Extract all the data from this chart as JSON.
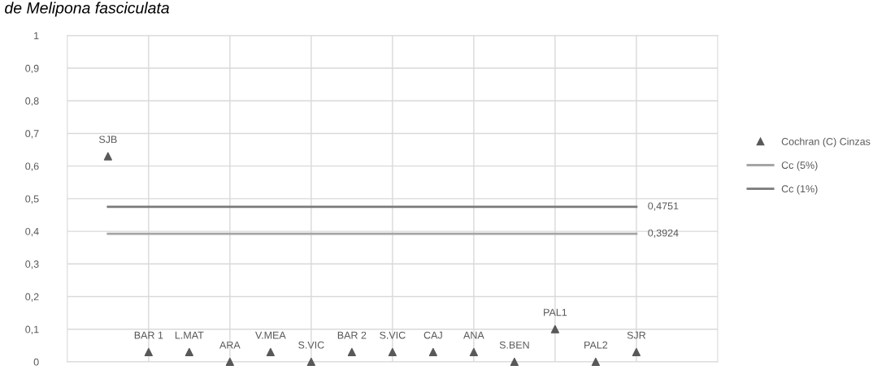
{
  "chart_data": {
    "type": "scatter",
    "title": "de Melipona fasciculata",
    "categories": [
      "SJB",
      "BAR 1",
      "L.MAT",
      "ARA",
      "V.MEA",
      "S.VIC",
      "BAR 2",
      "S.VIC",
      "CAJ",
      "ANA",
      "S.BEN",
      "PAL1",
      "PAL2",
      "SJR"
    ],
    "series": [
      {
        "name": "Cochran (C) Cinzas",
        "color": "#595959",
        "marker": "triangle",
        "values": [
          0.63,
          0.03,
          0.03,
          0,
          0.03,
          0,
          0.03,
          0.03,
          0.03,
          0.03,
          0,
          0.1,
          0,
          0.03
        ]
      },
      {
        "name": "Cc (5%)",
        "type": "line",
        "color": "#a5a5a5",
        "values": [
          0.3924,
          0.3924,
          0.3924,
          0.3924,
          0.3924,
          0.3924,
          0.3924,
          0.3924,
          0.3924,
          0.3924,
          0.3924,
          0.3924,
          0.3924,
          0.3924
        ],
        "value_labels": [
          null,
          null,
          null,
          null,
          null,
          null,
          null,
          null,
          null,
          null,
          null,
          null,
          null,
          "0,3924"
        ]
      },
      {
        "name": "Cc (1%)",
        "type": "line",
        "color": "#7a7a7a",
        "values": [
          0.4751,
          0.4751,
          0.4751,
          0.4751,
          0.4751,
          0.4751,
          0.4751,
          0.4751,
          0.4751,
          0.4751,
          0.4751,
          0.4751,
          0.4751,
          0.4751
        ],
        "value_labels": [
          null,
          null,
          null,
          null,
          null,
          null,
          null,
          null,
          null,
          null,
          null,
          null,
          null,
          "0,4751"
        ]
      }
    ],
    "ylim": [
      0,
      1
    ],
    "yticks": [
      0,
      {
        "value": 0.1,
        "label": "0,1"
      },
      {
        "value": 0.2,
        "label": "0,2"
      },
      {
        "value": 0.3,
        "label": "0,3"
      },
      {
        "value": 0.4,
        "label": "0,4"
      },
      {
        "value": 0.5,
        "label": "0,5"
      },
      {
        "value": 0.6,
        "label": "0,6"
      },
      {
        "value": 0.7,
        "label": "0,7"
      },
      {
        "value": 0.8,
        "label": "0,8"
      },
      {
        "value": 0.9,
        "label": "0,9"
      },
      1
    ],
    "tick_labels": "y",
    "grid": true,
    "legend": "right"
  }
}
